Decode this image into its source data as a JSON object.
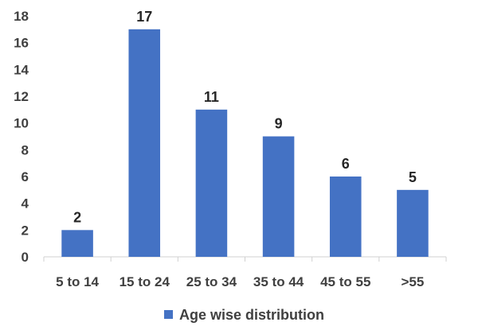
{
  "chart_data": {
    "type": "bar",
    "categories": [
      "5 to 14",
      "15 to 24",
      "25 to 34",
      "35 to 44",
      "45 to 55",
      ">55"
    ],
    "series": [
      {
        "name": "Age wise distribution",
        "values": [
          2,
          17,
          11,
          9,
          6,
          5
        ],
        "color": "#4472C4"
      }
    ],
    "ylim": [
      0,
      18
    ],
    "yticks": [
      0,
      2,
      4,
      6,
      8,
      10,
      12,
      14,
      16,
      18
    ],
    "grid": false,
    "legend": "bottom",
    "data_labels": true
  }
}
